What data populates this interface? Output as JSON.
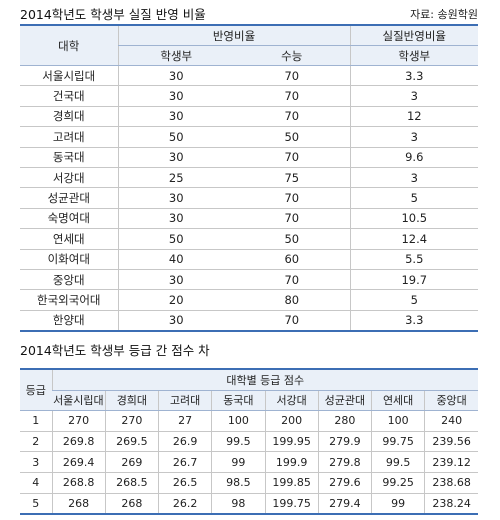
{
  "table1": {
    "title": "2014학년도 학생부 실질 반영 비율",
    "source": "자료: 송원학원",
    "headers": {
      "university": "대학",
      "ratio_group": "반영비율",
      "real_group": "실질반영비율",
      "student_record": "학생부",
      "suneung": "수능",
      "real_student_record": "학생부"
    },
    "rows": [
      [
        "서울시립대",
        "30",
        "70",
        "3.3"
      ],
      [
        "건국대",
        "30",
        "70",
        "3"
      ],
      [
        "경희대",
        "30",
        "70",
        "12"
      ],
      [
        "고려대",
        "50",
        "50",
        "3"
      ],
      [
        "동국대",
        "30",
        "70",
        "9.6"
      ],
      [
        "서강대",
        "25",
        "75",
        "3"
      ],
      [
        "성균관대",
        "30",
        "70",
        "5"
      ],
      [
        "숙명여대",
        "30",
        "70",
        "10.5"
      ],
      [
        "연세대",
        "50",
        "50",
        "12.4"
      ],
      [
        "이화여대",
        "40",
        "60",
        "5.5"
      ],
      [
        "중앙대",
        "30",
        "70",
        "19.7"
      ],
      [
        "한국외국어대",
        "20",
        "80",
        "5"
      ],
      [
        "한양대",
        "30",
        "70",
        "3.3"
      ]
    ]
  },
  "table2": {
    "title": "2014학년도 학생부 등급 간 점수 차",
    "grade_header": "등급",
    "group_header": "대학별 등급 점수",
    "universities": [
      "서울시립대",
      "경희대",
      "고려대",
      "동국대",
      "서강대",
      "성균관대",
      "연세대",
      "중앙대"
    ],
    "rows": [
      [
        "1",
        "270",
        "270",
        "27",
        "100",
        "200",
        "280",
        "100",
        "240"
      ],
      [
        "2",
        "269.8",
        "269.5",
        "26.9",
        "99.5",
        "199.95",
        "279.9",
        "99.75",
        "239.56"
      ],
      [
        "3",
        "269.4",
        "269",
        "26.7",
        "99",
        "199.9",
        "279.8",
        "99.5",
        "239.12"
      ],
      [
        "4",
        "268.8",
        "268.5",
        "26.5",
        "98.5",
        "199.85",
        "279.6",
        "99.25",
        "238.68"
      ],
      [
        "5",
        "268",
        "268",
        "26.2",
        "98",
        "199.75",
        "279.4",
        "99",
        "238.24"
      ]
    ]
  }
}
